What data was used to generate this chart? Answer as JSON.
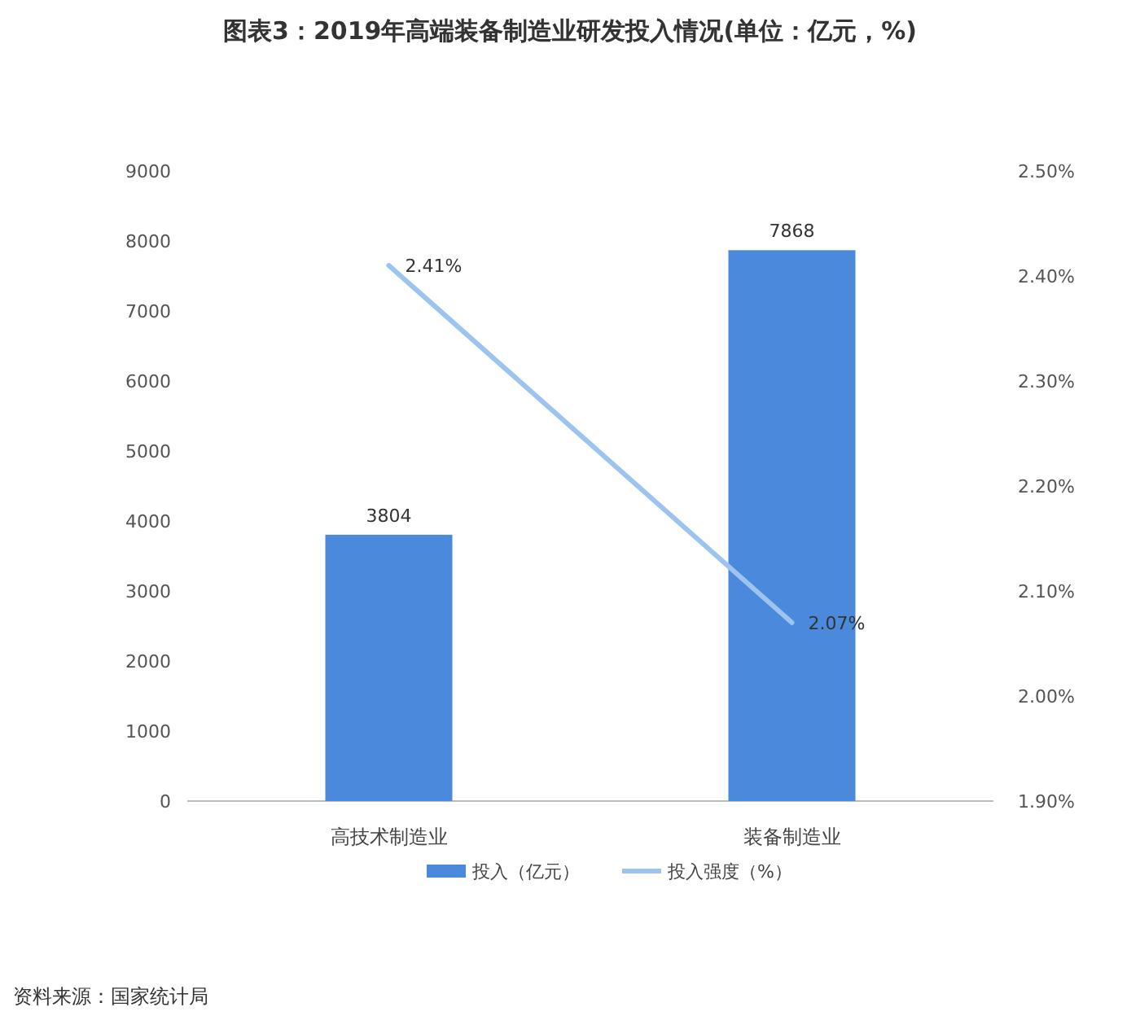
{
  "chart_data": {
    "type": "bar",
    "title": "图表3：2019年高端装备制造业研发投入情况(单位：亿元，%)",
    "categories": [
      "高技术制造业",
      "装备制造业"
    ],
    "series": [
      {
        "name": "投入（亿元）",
        "color": "#4a89dc",
        "values": [
          3804,
          7868
        ],
        "value_labels": [
          "3804",
          "7868"
        ]
      },
      {
        "name": "投入强度（%）",
        "type": "line",
        "axis": "y2",
        "color": "#9dc3ef",
        "values": [
          2.41,
          2.07
        ],
        "value_labels": [
          "2.41%",
          "2.07%"
        ]
      }
    ],
    "ylim": [
      0,
      9000
    ],
    "yticks": [
      0,
      1000,
      2000,
      3000,
      4000,
      5000,
      6000,
      7000,
      8000,
      9000
    ],
    "y2lim": [
      1.9,
      2.5
    ],
    "y2ticks": [
      {
        "value": 1.9,
        "label": "1.90%"
      },
      {
        "value": 2.0,
        "label": "2.00%"
      },
      {
        "value": 2.1,
        "label": "2.10%"
      },
      {
        "value": 2.2,
        "label": "2.20%"
      },
      {
        "value": 2.3,
        "label": "2.30%"
      },
      {
        "value": 2.4,
        "label": "2.40%"
      },
      {
        "value": 2.5,
        "label": "2.50%"
      }
    ],
    "legend": "bottom",
    "grid": false,
    "annotations": [
      "资料来源：国家统计局"
    ]
  }
}
